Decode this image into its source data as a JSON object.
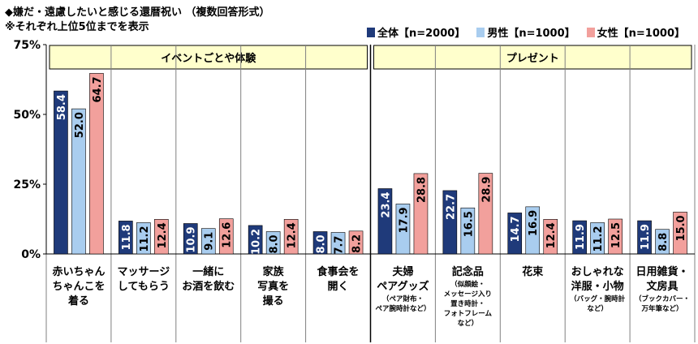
{
  "chart_data": {
    "type": "bar",
    "title": "◆嫌だ・遠慮したいと感じる還暦祝い （複数回答形式）",
    "subtitle": "※それぞれ上位5位までを表示",
    "ylim": [
      0,
      75
    ],
    "yticks": [
      "0%",
      "25%",
      "50%",
      "75%"
    ],
    "ytick_values": [
      0,
      25,
      50,
      75
    ],
    "grid": false,
    "legend_position": "top-right",
    "groups": [
      {
        "label": "イベントごとや体験",
        "start": 0,
        "end": 4
      },
      {
        "label": "プレゼント",
        "start": 5,
        "end": 9
      }
    ],
    "categories": [
      {
        "lines": [
          "赤いちゃん",
          "ちゃんこを",
          "着る"
        ],
        "note": []
      },
      {
        "lines": [
          "マッサージ",
          "してもらう"
        ],
        "note": []
      },
      {
        "lines": [
          "一緒に",
          "お酒を飲む"
        ],
        "note": []
      },
      {
        "lines": [
          "家族",
          "写真を",
          "撮る"
        ],
        "note": []
      },
      {
        "lines": [
          "食事会を",
          "開く"
        ],
        "note": []
      },
      {
        "lines": [
          "夫婦",
          "ペアグッズ"
        ],
        "note": [
          "（ペア財布・",
          "ペア腕時計など）"
        ]
      },
      {
        "lines": [
          "記念品"
        ],
        "note": [
          "（似顔絵・",
          "メッセージ入り",
          "置き時計・",
          "フォトフレーム",
          "など）"
        ]
      },
      {
        "lines": [
          "花束"
        ],
        "note": []
      },
      {
        "lines": [
          "おしゃれな",
          "洋服・小物"
        ],
        "note": [
          "（バッグ・腕時計",
          "など）"
        ]
      },
      {
        "lines": [
          "日用雑貨・",
          "文房具"
        ],
        "note": [
          "（ブックカバー・",
          "万年筆など）"
        ]
      }
    ],
    "series": [
      {
        "name": "全体【n=2000】",
        "color": "#1F3A7A",
        "values": [
          58.4,
          11.8,
          10.9,
          10.2,
          8.0,
          23.4,
          22.7,
          14.7,
          11.9,
          11.9
        ]
      },
      {
        "name": "男性【n=1000】",
        "color": "#A9CDEF",
        "values": [
          52.0,
          11.2,
          9.1,
          8.0,
          7.7,
          17.9,
          16.5,
          16.9,
          11.2,
          8.8
        ]
      },
      {
        "name": "女性【n=1000】",
        "color": "#F2A09C",
        "values": [
          64.7,
          12.4,
          12.6,
          12.4,
          8.2,
          28.8,
          28.9,
          12.4,
          12.5,
          15.0
        ]
      }
    ],
    "colors": {
      "group_header_bg": "#FFFFCC",
      "axis": "#000000",
      "divider": "#808080"
    }
  }
}
